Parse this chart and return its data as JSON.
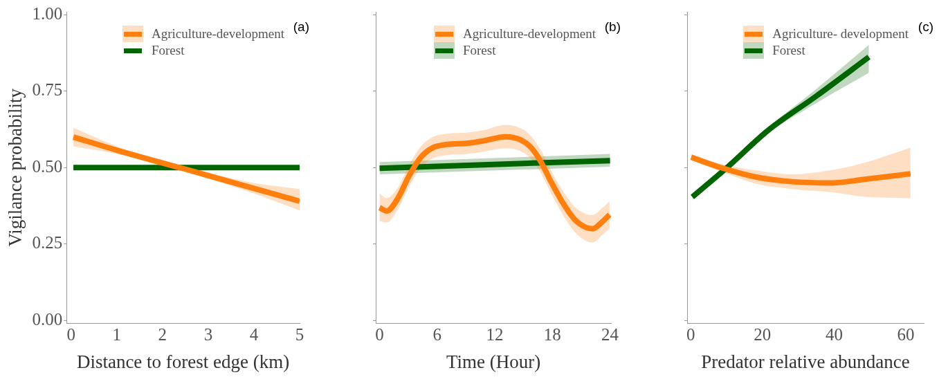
{
  "chart_data": [
    {
      "type": "line",
      "ylabel": "Vigilance probability",
      "xlabel": "Distance to forest edge (km)",
      "annotations": [
        "(a)"
      ],
      "legend": "top right",
      "marker": "none",
      "line_style": "solid",
      "xlim": [
        -0.1,
        5
      ],
      "xticks": [
        0,
        1,
        2,
        3,
        4,
        5
      ],
      "ylim": [
        -0.01,
        1.01
      ],
      "yticks": [
        {
          "value": 0,
          "label": "0.00"
        },
        {
          "value": 0.25,
          "label": "0.25"
        },
        {
          "value": 0.5,
          "label": "0.50"
        },
        {
          "value": 0.75,
          "label": "0.75"
        },
        {
          "value": 1,
          "label": "1.00"
        }
      ],
      "series": [
        {
          "name": "Agriculture-development",
          "color": "#ff7f0e",
          "x": [
            0.05,
            1,
            2,
            2.5,
            3,
            4,
            5
          ],
          "values": [
            0.6,
            0.557,
            0.515,
            0.495,
            0.474,
            0.432,
            0.39
          ],
          "lower": [
            0.57,
            0.545,
            0.507,
            0.487,
            0.465,
            0.415,
            0.36
          ],
          "upper": [
            0.63,
            0.57,
            0.522,
            0.503,
            0.483,
            0.45,
            0.43
          ]
        },
        {
          "name": "Forest",
          "color": "#006400",
          "x": [
            0.05,
            5
          ],
          "values": [
            0.5,
            0.5
          ]
        }
      ]
    },
    {
      "type": "line",
      "xlabel": "Time (Hour)",
      "annotations": [
        "(b)"
      ],
      "legend": "top right",
      "marker": "none",
      "line_style": "solid",
      "tick_labels": "x",
      "xlim": [
        -0.4,
        24.1
      ],
      "xticks": [
        0,
        6,
        12,
        18,
        24
      ],
      "ylim": [
        -0.01,
        1.01
      ],
      "yticks": [
        0,
        0.25,
        0.5,
        0.75,
        1
      ],
      "series": [
        {
          "name": "Agriculture-development",
          "color": "#ff7f0e",
          "x": [
            0,
            0.74,
            1.84,
            3.07,
            4.3,
            5.53,
            7,
            9.2,
            10.9,
            13.1,
            14.6,
            15.8,
            16.8,
            17.8,
            19,
            20.3,
            21.5,
            22.2,
            23.2,
            23.95
          ],
          "values": [
            0.369,
            0.358,
            0.396,
            0.473,
            0.534,
            0.565,
            0.576,
            0.58,
            0.588,
            0.601,
            0.592,
            0.565,
            0.519,
            0.457,
            0.389,
            0.331,
            0.304,
            0.3,
            0.323,
            0.346
          ],
          "lower": [
            0.325,
            0.32,
            0.36,
            0.438,
            0.499,
            0.53,
            0.541,
            0.545,
            0.553,
            0.563,
            0.555,
            0.528,
            0.482,
            0.42,
            0.35,
            0.29,
            0.26,
            0.255,
            0.28,
            0.3
          ],
          "upper": [
            0.415,
            0.4,
            0.432,
            0.508,
            0.569,
            0.6,
            0.611,
            0.615,
            0.623,
            0.64,
            0.63,
            0.602,
            0.556,
            0.494,
            0.428,
            0.372,
            0.348,
            0.345,
            0.368,
            0.39
          ]
        },
        {
          "name": "Forest",
          "color": "#006400",
          "x": [
            0,
            24
          ],
          "values": [
            0.498,
            0.523
          ],
          "lower": [
            0.478,
            0.503
          ],
          "upper": [
            0.518,
            0.545
          ]
        }
      ]
    },
    {
      "type": "line",
      "xlabel": "Predator relative abundance",
      "annotations": [
        "(c)"
      ],
      "legend": "top right",
      "marker": "none",
      "line_style": "solid",
      "tick_labels": "x",
      "xlim": [
        -1,
        65
      ],
      "xticks": [
        0,
        20,
        40,
        60
      ],
      "ylim": [
        -0.01,
        1.01
      ],
      "yticks": [
        0,
        0.25,
        0.5,
        0.75,
        1
      ],
      "series": [
        {
          "name": "Agriculture- development",
          "color": "#ff7f0e",
          "x": [
            0.13,
            8.4,
            18.3,
            28.2,
            39.5,
            48.1,
            61.3
          ],
          "values": [
            0.534,
            0.5,
            0.469,
            0.454,
            0.45,
            0.461,
            0.48
          ],
          "lower": [
            0.524,
            0.488,
            0.447,
            0.43,
            0.419,
            0.405,
            0.4
          ],
          "upper": [
            0.544,
            0.512,
            0.491,
            0.478,
            0.492,
            0.515,
            0.565
          ]
        },
        {
          "name": "Forest",
          "color": "#006400",
          "x": [
            0.46,
            10.4,
            21.6,
            34.9,
            49.7
          ],
          "values": [
            0.404,
            0.503,
            0.622,
            0.733,
            0.862
          ],
          "lower": [
            0.394,
            0.495,
            0.612,
            0.71,
            0.81
          ],
          "upper": [
            0.414,
            0.511,
            0.632,
            0.756,
            0.902
          ]
        }
      ]
    }
  ]
}
